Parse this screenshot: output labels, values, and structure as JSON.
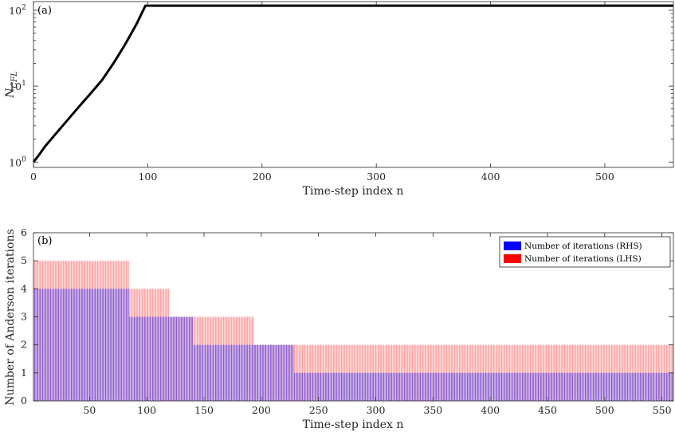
{
  "chart_data": [
    {
      "type": "line",
      "panel_label": "(a)",
      "xlabel": "Time-step index n",
      "ylabel": "N_CFL",
      "ylabel_main": "N",
      "ylabel_sub": "CFL",
      "y_scale": "log",
      "xlim": [
        0,
        560
      ],
      "ylim": [
        0.85,
        130
      ],
      "xticks": [
        0,
        100,
        200,
        300,
        400,
        500
      ],
      "xtick_labels": [
        "0",
        "100",
        "200",
        "300",
        "400",
        "500"
      ],
      "yticks": [
        1,
        10,
        100
      ],
      "ytick_labels": [
        [
          "10",
          "0"
        ],
        [
          "10",
          "1"
        ],
        [
          "10",
          "2"
        ]
      ],
      "grid": false,
      "series": [
        {
          "color": "#000000",
          "x": [
            0,
            5,
            10,
            20,
            30,
            40,
            50,
            60,
            70,
            80,
            90,
            98,
            100,
            560
          ],
          "y": [
            1,
            1.25,
            1.6,
            2.4,
            3.6,
            5.4,
            8,
            12,
            20,
            35,
            65,
            115,
            115,
            115
          ]
        }
      ]
    },
    {
      "type": "bar",
      "panel_label": "(b)",
      "xlabel": "Time-step index n",
      "ylabel": "Number of Anderson iterations",
      "xlim": [
        1,
        560
      ],
      "ylim": [
        0,
        6
      ],
      "xticks": [
        50,
        100,
        150,
        200,
        250,
        300,
        350,
        400,
        450,
        500,
        550
      ],
      "xtick_labels": [
        "50",
        "100",
        "150",
        "200",
        "250",
        "300",
        "350",
        "400",
        "450",
        "500",
        "550"
      ],
      "yticks": [
        0,
        1,
        2,
        3,
        4,
        5,
        6
      ],
      "ytick_labels": [
        "0",
        "1",
        "2",
        "3",
        "4",
        "5",
        "6"
      ],
      "legend_position": "top-right",
      "grid": false,
      "series": [
        {
          "name": "Number of iterations (RHS)",
          "color": "#0000ff",
          "steps": [
            {
              "from": 1,
              "to": 84,
              "value": 4
            },
            {
              "from": 85,
              "to": 140,
              "value": 3
            },
            {
              "from": 141,
              "to": 228,
              "value": 2
            },
            {
              "from": 229,
              "to": 560,
              "value": 1
            }
          ]
        },
        {
          "name": "Number of iterations (LHS)",
          "color": "#ff0000",
          "steps": [
            {
              "from": 1,
              "to": 84,
              "value": 5
            },
            {
              "from": 85,
              "to": 119,
              "value": 4
            },
            {
              "from": 120,
              "to": 140,
              "value": 3
            },
            {
              "from": 141,
              "to": 193,
              "value": 3
            },
            {
              "from": 194,
              "to": 228,
              "value": 2
            },
            {
              "from": 229,
              "to": 560,
              "value": 2
            }
          ]
        }
      ]
    }
  ]
}
